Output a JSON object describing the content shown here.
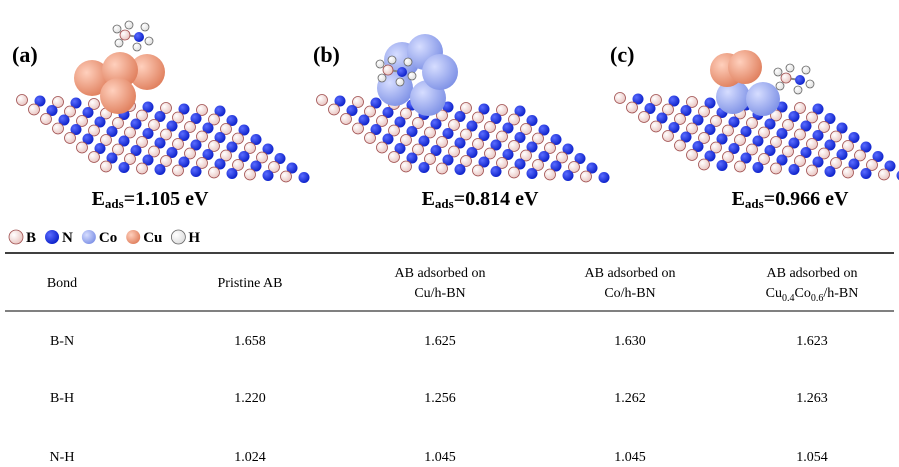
{
  "panels": [
    {
      "label": "(a)",
      "energy": {
        "symbol": "E",
        "subscript": "ads",
        "value": "=1.105 eV"
      }
    },
    {
      "label": "(b)",
      "energy": {
        "symbol": "E",
        "subscript": "ads",
        "value": "=0.814 eV"
      }
    },
    {
      "label": "(c)",
      "energy": {
        "symbol": "E",
        "subscript": "ads",
        "value": "=0.966 eV"
      }
    }
  ],
  "legend": [
    "B",
    "N",
    "Co",
    "Cu",
    "H"
  ],
  "table": {
    "header": [
      {
        "line1": "Bond"
      },
      {
        "line1": "Pristine AB"
      },
      {
        "line1": "AB adsorbed on",
        "line2": [
          "Cu/h-BN"
        ]
      },
      {
        "line1": "AB adsorbed on",
        "line2": [
          "Co/h-BN"
        ]
      },
      {
        "line1": "AB adsorbed on",
        "line2": [
          "Cu",
          "0.4",
          "Co",
          "0.6",
          "/h-BN"
        ]
      }
    ],
    "rows": [
      [
        "B-N",
        "1.658",
        "1.625",
        "1.630",
        "1.623"
      ],
      [
        "B-H",
        "1.220",
        "1.256",
        "1.262",
        "1.263"
      ],
      [
        "N-H",
        "1.024",
        "1.045",
        "1.045",
        "1.054"
      ]
    ]
  }
}
